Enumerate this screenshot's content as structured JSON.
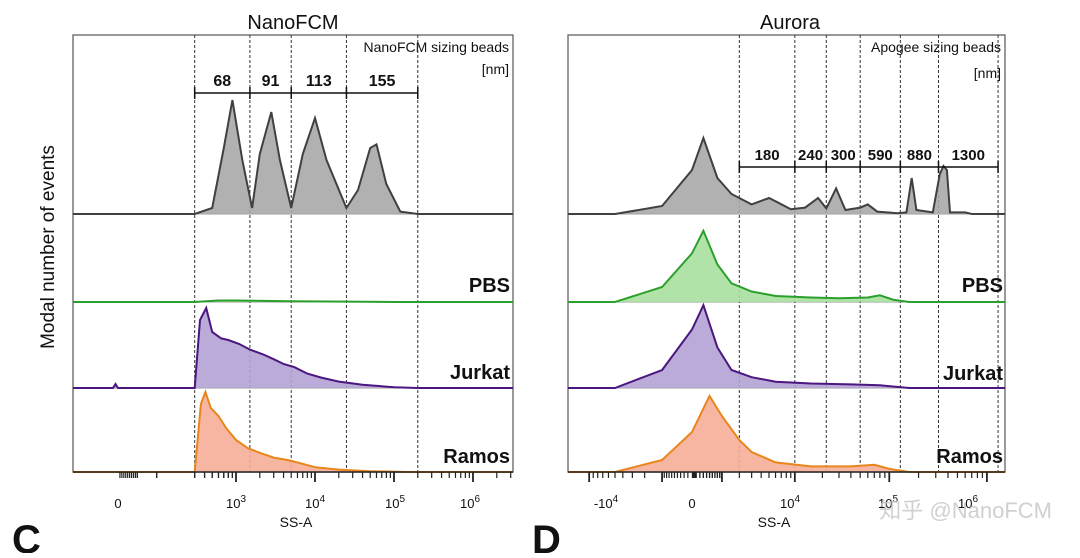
{
  "figure": {
    "ylabel": "Modal number of events",
    "watermark": "知乎 @NanoFCM",
    "panel_letters": [
      "C",
      "D"
    ],
    "colors": {
      "beads_fill": "#a9a9a9",
      "beads_line": "#404040",
      "pbs_fill": "#a9e0a0",
      "pbs_line": "#2ca02c",
      "jurkat_fill": "#b4a2d4",
      "jurkat_line": "#4b1680",
      "ramos_fill": "#f6ae98",
      "ramos_line": "#e8861c",
      "frame": "#555555",
      "divider": "#9a9a9a"
    }
  },
  "chart_data": [
    {
      "type": "area",
      "title": "NanoFCM",
      "xlabel": "SS-A",
      "ylabel": "Modal number of events",
      "x_scale": "log",
      "xlim": [
        -100,
        3000000
      ],
      "x_ticks": [
        {
          "label": "0",
          "value": 0
        },
        {
          "label": "10^3",
          "value": 1000
        },
        {
          "label": "10^4",
          "value": 10000
        },
        {
          "label": "10^5",
          "value": 100000
        },
        {
          "label": "10^6",
          "value": 1000000
        }
      ],
      "bead_title": "NanoFCM sizing beads",
      "bead_unit": "[nm]",
      "bead_sizes": [
        "68",
        "91",
        "113",
        "155"
      ],
      "bead_gates": [
        300,
        1500,
        5000,
        25000,
        200000
      ],
      "series": [
        {
          "name": "NanoFCM sizing beads",
          "key": "beads",
          "label": "",
          "points": [
            [
              300,
              0
            ],
            [
              500,
              0.05
            ],
            [
              700,
              0.55
            ],
            [
              900,
              0.95
            ],
            [
              1200,
              0.45
            ],
            [
              1600,
              0.05
            ],
            [
              2000,
              0.5
            ],
            [
              2800,
              0.85
            ],
            [
              3600,
              0.45
            ],
            [
              5000,
              0.05
            ],
            [
              7000,
              0.5
            ],
            [
              10000,
              0.8
            ],
            [
              14000,
              0.45
            ],
            [
              25000,
              0.05
            ],
            [
              35000,
              0.2
            ],
            [
              50000,
              0.55
            ],
            [
              60000,
              0.58
            ],
            [
              80000,
              0.25
            ],
            [
              120000,
              0.02
            ],
            [
              200000,
              0
            ]
          ]
        },
        {
          "name": "PBS",
          "key": "pbs",
          "label": "PBS",
          "points": [
            [
              300,
              0
            ],
            [
              600,
              0.02
            ],
            [
              1000,
              0.02
            ],
            [
              5000,
              0.01
            ],
            [
              100000,
              0.0
            ]
          ]
        },
        {
          "name": "Jurkat",
          "key": "jurkat",
          "label": "Jurkat",
          "points": [
            [
              -20,
              0
            ],
            [
              -10,
              0.05
            ],
            [
              0,
              0
            ],
            [
              300,
              0
            ],
            [
              350,
              0.85
            ],
            [
              420,
              1.0
            ],
            [
              500,
              0.7
            ],
            [
              650,
              0.62
            ],
            [
              800,
              0.6
            ],
            [
              1100,
              0.55
            ],
            [
              1500,
              0.48
            ],
            [
              2200,
              0.42
            ],
            [
              3000,
              0.36
            ],
            [
              4000,
              0.3
            ],
            [
              5500,
              0.26
            ],
            [
              8000,
              0.18
            ],
            [
              12000,
              0.13
            ],
            [
              20000,
              0.08
            ],
            [
              40000,
              0.04
            ],
            [
              100000,
              0.01
            ],
            [
              200000,
              0
            ]
          ]
        },
        {
          "name": "Ramos",
          "key": "ramos",
          "label": "Ramos",
          "points": [
            [
              300,
              0
            ],
            [
              360,
              0.85
            ],
            [
              410,
              1.0
            ],
            [
              480,
              0.8
            ],
            [
              600,
              0.7
            ],
            [
              750,
              0.55
            ],
            [
              1000,
              0.4
            ],
            [
              1400,
              0.3
            ],
            [
              2000,
              0.24
            ],
            [
              3000,
              0.18
            ],
            [
              4500,
              0.15
            ],
            [
              6500,
              0.11
            ],
            [
              10000,
              0.06
            ],
            [
              20000,
              0.03
            ],
            [
              50000,
              0.01
            ],
            [
              150000,
              0
            ]
          ]
        }
      ]
    },
    {
      "type": "area",
      "title": "Aurora",
      "xlabel": "SS-A",
      "ylabel": "Modal number of events",
      "x_scale": "biexponential",
      "xlim": [
        -30000,
        3000000
      ],
      "x_ticks": [
        {
          "label": "-10^4",
          "value": -10000
        },
        {
          "label": "0",
          "value": 0
        },
        {
          "label": "10^4",
          "value": 10000
        },
        {
          "label": "10^5",
          "value": 100000
        },
        {
          "label": "10^6",
          "value": 1000000
        }
      ],
      "bead_title": "Apogee sizing beads",
      "bead_unit": "[nm]",
      "bead_sizes": [
        "180",
        "240",
        "300",
        "590",
        "880",
        "1300"
      ],
      "bead_gates": [
        2000,
        10000,
        22000,
        50000,
        130000,
        320000,
        1300000
      ],
      "series": [
        {
          "name": "Apogee sizing beads",
          "key": "beads",
          "label": "",
          "points": [
            [
              -5000,
              0
            ],
            [
              -1000,
              0.1
            ],
            [
              0,
              0.55
            ],
            [
              300,
              0.95
            ],
            [
              800,
              0.45
            ],
            [
              1500,
              0.25
            ],
            [
              3000,
              0.12
            ],
            [
              5000,
              0.2
            ],
            [
              6500,
              0.14
            ],
            [
              9000,
              0.06
            ],
            [
              13000,
              0.08
            ],
            [
              18000,
              0.2
            ],
            [
              22000,
              0.07
            ],
            [
              28000,
              0.32
            ],
            [
              35000,
              0.05
            ],
            [
              50000,
              0.08
            ],
            [
              60000,
              0.12
            ],
            [
              75000,
              0.03
            ],
            [
              120000,
              0.01
            ],
            [
              150000,
              0.02
            ],
            [
              170000,
              0.45
            ],
            [
              190000,
              0.05
            ],
            [
              280000,
              0.02
            ],
            [
              330000,
              0.5
            ],
            [
              360000,
              0.6
            ],
            [
              390000,
              0.55
            ],
            [
              420000,
              0.02
            ],
            [
              600000,
              0.02
            ],
            [
              700000,
              0
            ]
          ]
        },
        {
          "name": "PBS",
          "key": "pbs",
          "label": "PBS",
          "points": [
            [
              -5000,
              0
            ],
            [
              -1000,
              0.2
            ],
            [
              0,
              0.65
            ],
            [
              300,
              0.95
            ],
            [
              800,
              0.5
            ],
            [
              1500,
              0.25
            ],
            [
              3000,
              0.14
            ],
            [
              6000,
              0.08
            ],
            [
              15000,
              0.06
            ],
            [
              30000,
              0.05
            ],
            [
              60000,
              0.06
            ],
            [
              80000,
              0.09
            ],
            [
              110000,
              0.03
            ],
            [
              160000,
              0
            ]
          ]
        },
        {
          "name": "Jurkat",
          "key": "jurkat",
          "label": "Jurkat",
          "points": [
            [
              -5000,
              0
            ],
            [
              -1000,
              0.2
            ],
            [
              0,
              0.65
            ],
            [
              300,
              0.92
            ],
            [
              800,
              0.45
            ],
            [
              1500,
              0.2
            ],
            [
              3000,
              0.12
            ],
            [
              6000,
              0.07
            ],
            [
              15000,
              0.05
            ],
            [
              40000,
              0.04
            ],
            [
              80000,
              0.03
            ],
            [
              160000,
              0
            ]
          ]
        },
        {
          "name": "Ramos",
          "key": "ramos",
          "label": "Ramos",
          "points": [
            [
              -5000,
              0
            ],
            [
              -1000,
              0.15
            ],
            [
              0,
              0.5
            ],
            [
              500,
              0.95
            ],
            [
              1000,
              0.7
            ],
            [
              2000,
              0.4
            ],
            [
              3000,
              0.25
            ],
            [
              6000,
              0.12
            ],
            [
              15000,
              0.07
            ],
            [
              40000,
              0.07
            ],
            [
              70000,
              0.09
            ],
            [
              100000,
              0.04
            ],
            [
              160000,
              0
            ]
          ]
        }
      ]
    }
  ]
}
